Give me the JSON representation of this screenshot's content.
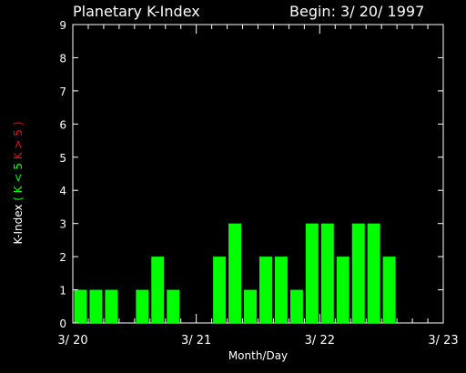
{
  "header": {
    "title": "Planetary K-Index",
    "begin": "Begin: 3/ 20/ 1997"
  },
  "chart_data": {
    "type": "bar",
    "title": "Planetary K-Index",
    "xlabel": "Month/Day",
    "ylabel": "K-Index",
    "ylabel_legend": [
      {
        "text": "(",
        "color": "#00ff00"
      },
      {
        "text": "K < 5",
        "color": "#00ff00"
      },
      {
        "text": "K > 5",
        "color": "#ff0000"
      },
      {
        "text": ")",
        "color": "#ff0000"
      }
    ],
    "ylim": [
      0,
      9
    ],
    "yticks": [
      "0",
      "1",
      "2",
      "3",
      "4",
      "5",
      "6",
      "7",
      "8",
      "9"
    ],
    "xlim_days": [
      0,
      3
    ],
    "xtick_labels": [
      "3/ 20",
      "3/ 21",
      "3/ 22",
      "3/ 23"
    ],
    "bar_interval_hours": 3,
    "values": [
      1,
      1,
      1,
      0,
      1,
      2,
      1,
      0,
      0,
      2,
      3,
      1,
      2,
      2,
      1,
      3,
      3,
      2,
      3,
      3,
      2
    ],
    "bar_color_low": "#00ff00",
    "bar_color_high": "#ff0000",
    "grid": false
  }
}
